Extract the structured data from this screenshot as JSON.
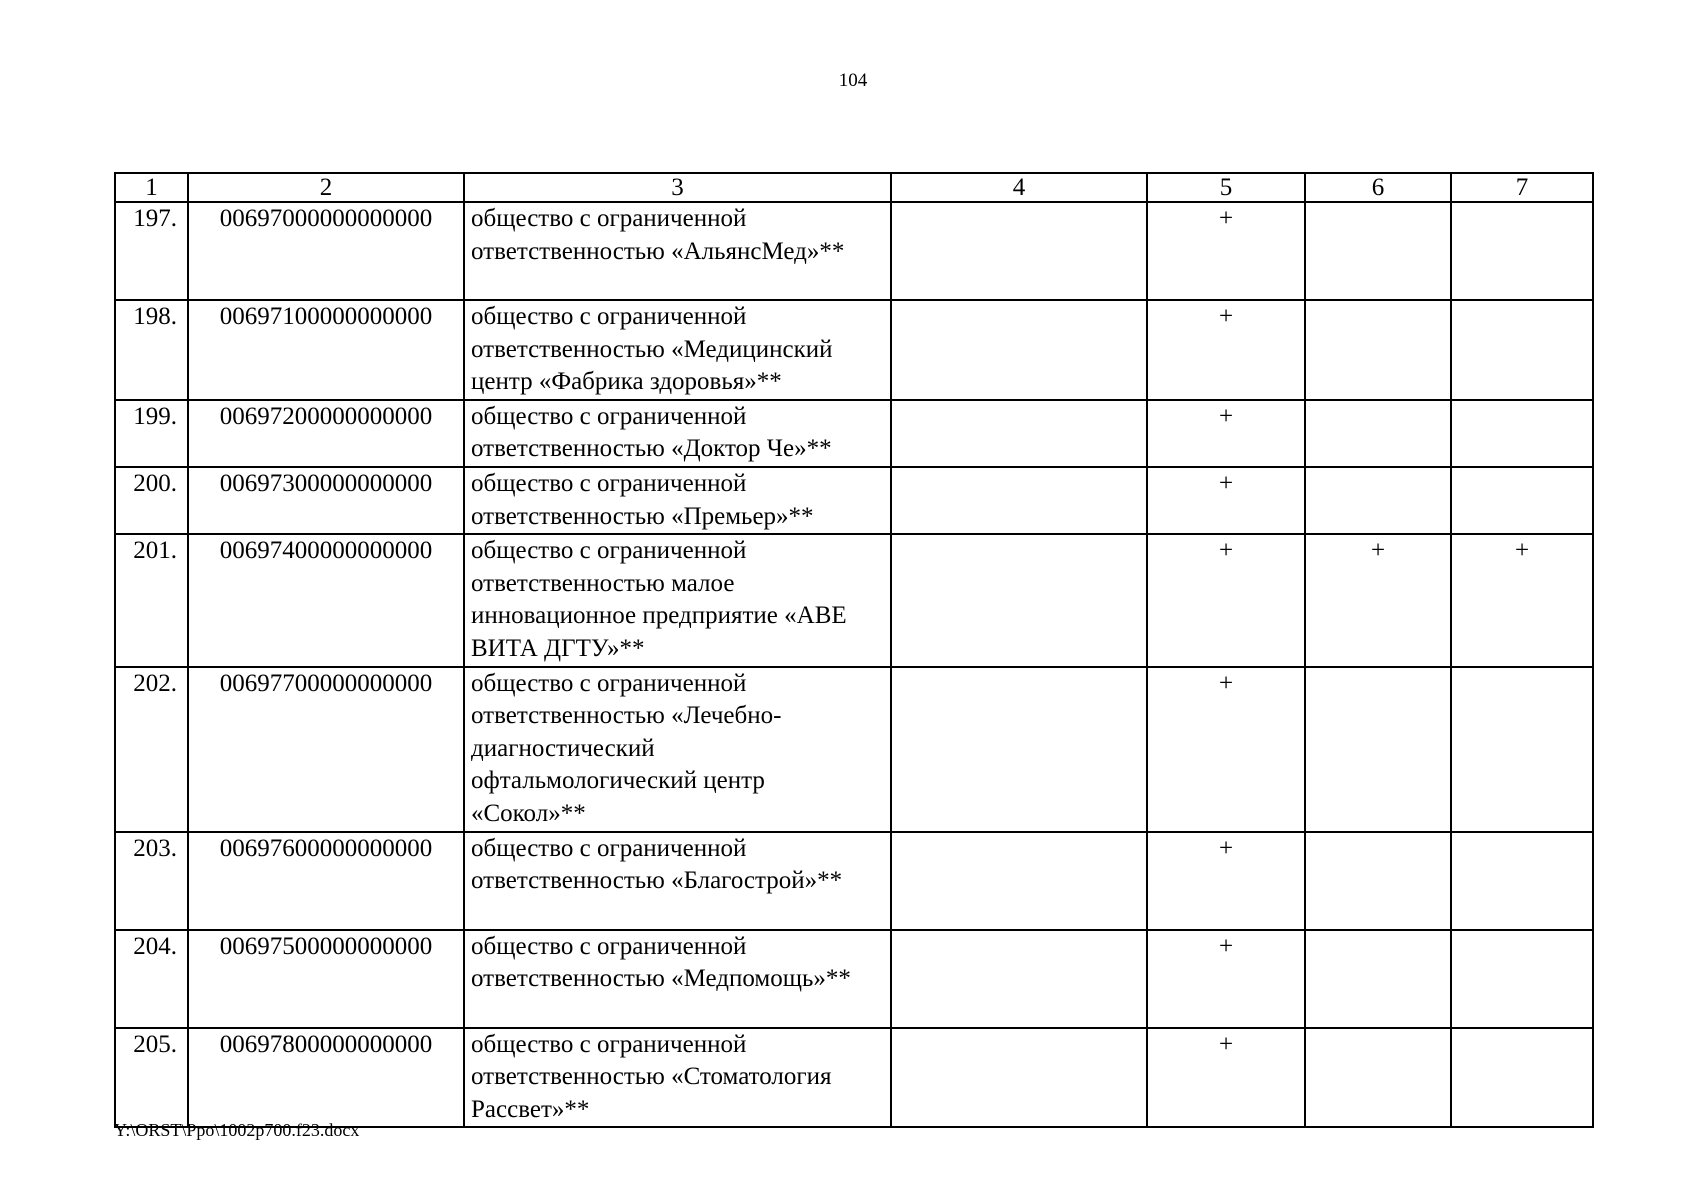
{
  "page_number": "104",
  "table": {
    "headers": [
      "1",
      "2",
      "3",
      "4",
      "5",
      "6",
      "7"
    ],
    "rows": [
      {
        "no": "197.",
        "code": "00697000000000000",
        "name": "общество с ограниченной ответственностью «АльянсМед»**",
        "c4": "",
        "c5": "+",
        "c6": "",
        "c7": ""
      },
      {
        "no": "198.",
        "code": "00697100000000000",
        "name": "общество с ограниченной ответственностью «Медицинский центр «Фабрика здоровья»**",
        "c4": "",
        "c5": "+",
        "c6": "",
        "c7": ""
      },
      {
        "no": "199.",
        "code": "00697200000000000",
        "name": "общество с ограниченной ответственностью «Доктор Че»**",
        "c4": "",
        "c5": "+",
        "c6": "",
        "c7": ""
      },
      {
        "no": "200.",
        "code": "00697300000000000",
        "name": "общество с ограниченной ответственностью «Премьер»**",
        "c4": "",
        "c5": "+",
        "c6": "",
        "c7": ""
      },
      {
        "no": "201.",
        "code": "00697400000000000",
        "name": "общество с ограниченной ответственностью малое инновационное предприятие «АВЕ ВИТА ДГТУ»**",
        "c4": "",
        "c5": "+",
        "c6": "+",
        "c7": "+"
      },
      {
        "no": "202.",
        "code": "00697700000000000",
        "name": "общество с ограниченной ответственностью «Лечебно-диагностический офтальмологический центр «Сокол»**",
        "c4": "",
        "c5": "+",
        "c6": "",
        "c7": ""
      },
      {
        "no": "203.",
        "code": "00697600000000000",
        "name": "общество с ограниченной ответственностью «Благострой»**",
        "c4": "",
        "c5": "+",
        "c6": "",
        "c7": ""
      },
      {
        "no": "204.",
        "code": "00697500000000000",
        "name": "общество с ограниченной ответственностью «Медпомощь»**",
        "c4": "",
        "c5": "+",
        "c6": "",
        "c7": ""
      },
      {
        "no": "205.",
        "code": "00697800000000000",
        "name": "общество с ограниченной ответственностью «Стоматология Рассвет»**",
        "c4": "",
        "c5": "+",
        "c6": "",
        "c7": ""
      }
    ]
  },
  "footer_path": "Y:\\ORST\\Ppo\\1002p700.f23.docx"
}
